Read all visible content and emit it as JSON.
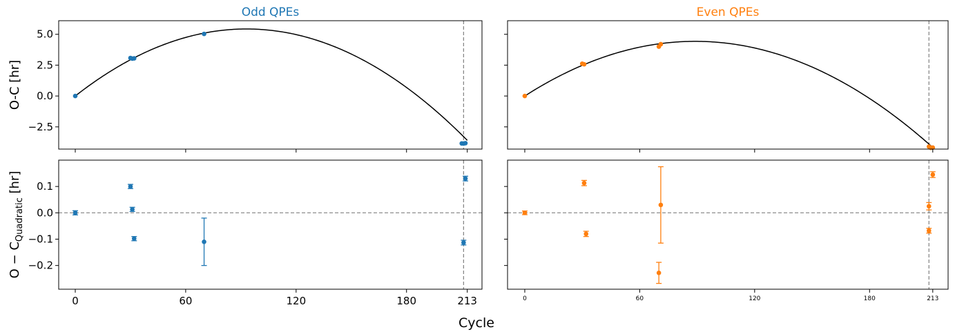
{
  "figure": {
    "xlabel": "Cycle"
  },
  "colors": {
    "odd": "#1f77b4",
    "even": "#ff7f0e",
    "model": "#000000",
    "refline": "#808080"
  },
  "chart_data": [
    {
      "id": "odd-top",
      "type": "scatter",
      "title": "Odd QPEs",
      "ylabel": "O-C [hr]",
      "xlim": [
        -9,
        221
      ],
      "ylim": [
        -4.3,
        6.1
      ],
      "xticks": [
        0,
        60,
        120,
        180,
        213
      ],
      "xtick_labels": [],
      "yticks": [
        -2.5,
        0,
        2.5,
        5
      ],
      "ytick_labels": [
        "−2.5",
        "0.0",
        "2.5",
        "5.0"
      ],
      "vline_x": 211,
      "curve": {
        "a": -0.000627,
        "b": 0.1167,
        "c": 0
      },
      "series": [
        {
          "points": [
            [
              0,
              0.0
            ],
            [
              30,
              3.08
            ],
            [
              31,
              3.03
            ],
            [
              32,
              3.05
            ],
            [
              70,
              5.03
            ],
            [
              210,
              -3.84
            ],
            [
              211,
              -3.85
            ],
            [
              212,
              -3.82
            ]
          ]
        }
      ]
    },
    {
      "id": "even-top",
      "type": "scatter",
      "title": "Even QPEs",
      "ylabel": "",
      "xlim": [
        -9,
        221
      ],
      "ylim": [
        -4.3,
        6.1
      ],
      "xticks": [
        0,
        60,
        120,
        180,
        213
      ],
      "xtick_labels": [],
      "yticks": [
        -2.5,
        0,
        2.5,
        5
      ],
      "ytick_labels": [],
      "vline_x": 211,
      "curve": {
        "a": -0.000559,
        "b": 0.0995,
        "c": 0
      },
      "series": [
        {
          "points": [
            [
              0,
              0.0
            ],
            [
              30,
              2.62
            ],
            [
              31,
              2.57
            ],
            [
              70,
              4.0
            ],
            [
              71,
              4.2
            ],
            [
              211,
              -4.1
            ],
            [
              212,
              -4.2
            ],
            [
              213,
              -4.18
            ]
          ]
        }
      ]
    },
    {
      "id": "odd-bottom",
      "type": "scatter",
      "title": "",
      "ylabel": "O − C",
      "ylabel_sub": "Quadratic",
      "ylabel_suffix": " [hr]",
      "xlim": [
        -9,
        221
      ],
      "ylim": [
        -0.29,
        0.2
      ],
      "xticks": [
        0,
        60,
        120,
        180,
        213
      ],
      "xtick_labels": [
        "0",
        "60",
        "120",
        "180",
        "213"
      ],
      "yticks": [
        -0.2,
        -0.1,
        0,
        0.1
      ],
      "ytick_labels": [
        "−0.2",
        "−0.1",
        "0.0",
        "0.1"
      ],
      "hline_y": 0,
      "vline_x": 211,
      "series": [
        {
          "points": [
            [
              0,
              0.0
            ],
            [
              30,
              0.1
            ],
            [
              31,
              0.013
            ],
            [
              32,
              -0.098
            ],
            [
              70,
              -0.11
            ],
            [
              211,
              -0.113
            ],
            [
              212,
              0.13
            ]
          ],
          "errors": [
            0.008,
            0.008,
            0.008,
            0.008,
            0.09,
            0.009,
            0.009
          ]
        }
      ]
    },
    {
      "id": "even-bottom",
      "type": "scatter",
      "title": "",
      "ylabel": "",
      "xlim": [
        -9,
        221
      ],
      "ylim": [
        -0.29,
        0.2
      ],
      "xticks": [
        0,
        60,
        120,
        180,
        213
      ],
      "xtick_labels": [
        "0",
        "60",
        "120",
        "180",
        "213"
      ],
      "yticks": [
        -0.2,
        -0.1,
        0,
        0.1
      ],
      "ytick_labels": [],
      "hline_y": 0,
      "vline_x": 211,
      "series": [
        {
          "points": [
            [
              0,
              0.0
            ],
            [
              31,
              0.113
            ],
            [
              32,
              -0.08
            ],
            [
              70,
              -0.228
            ],
            [
              71,
              0.03
            ],
            [
              211,
              -0.068
            ],
            [
              211,
              0.025
            ],
            [
              213,
              0.145
            ]
          ],
          "errors": [
            0.007,
            0.01,
            0.01,
            0.04,
            0.145,
            0.009,
            0.014,
            0.011
          ]
        }
      ]
    }
  ]
}
